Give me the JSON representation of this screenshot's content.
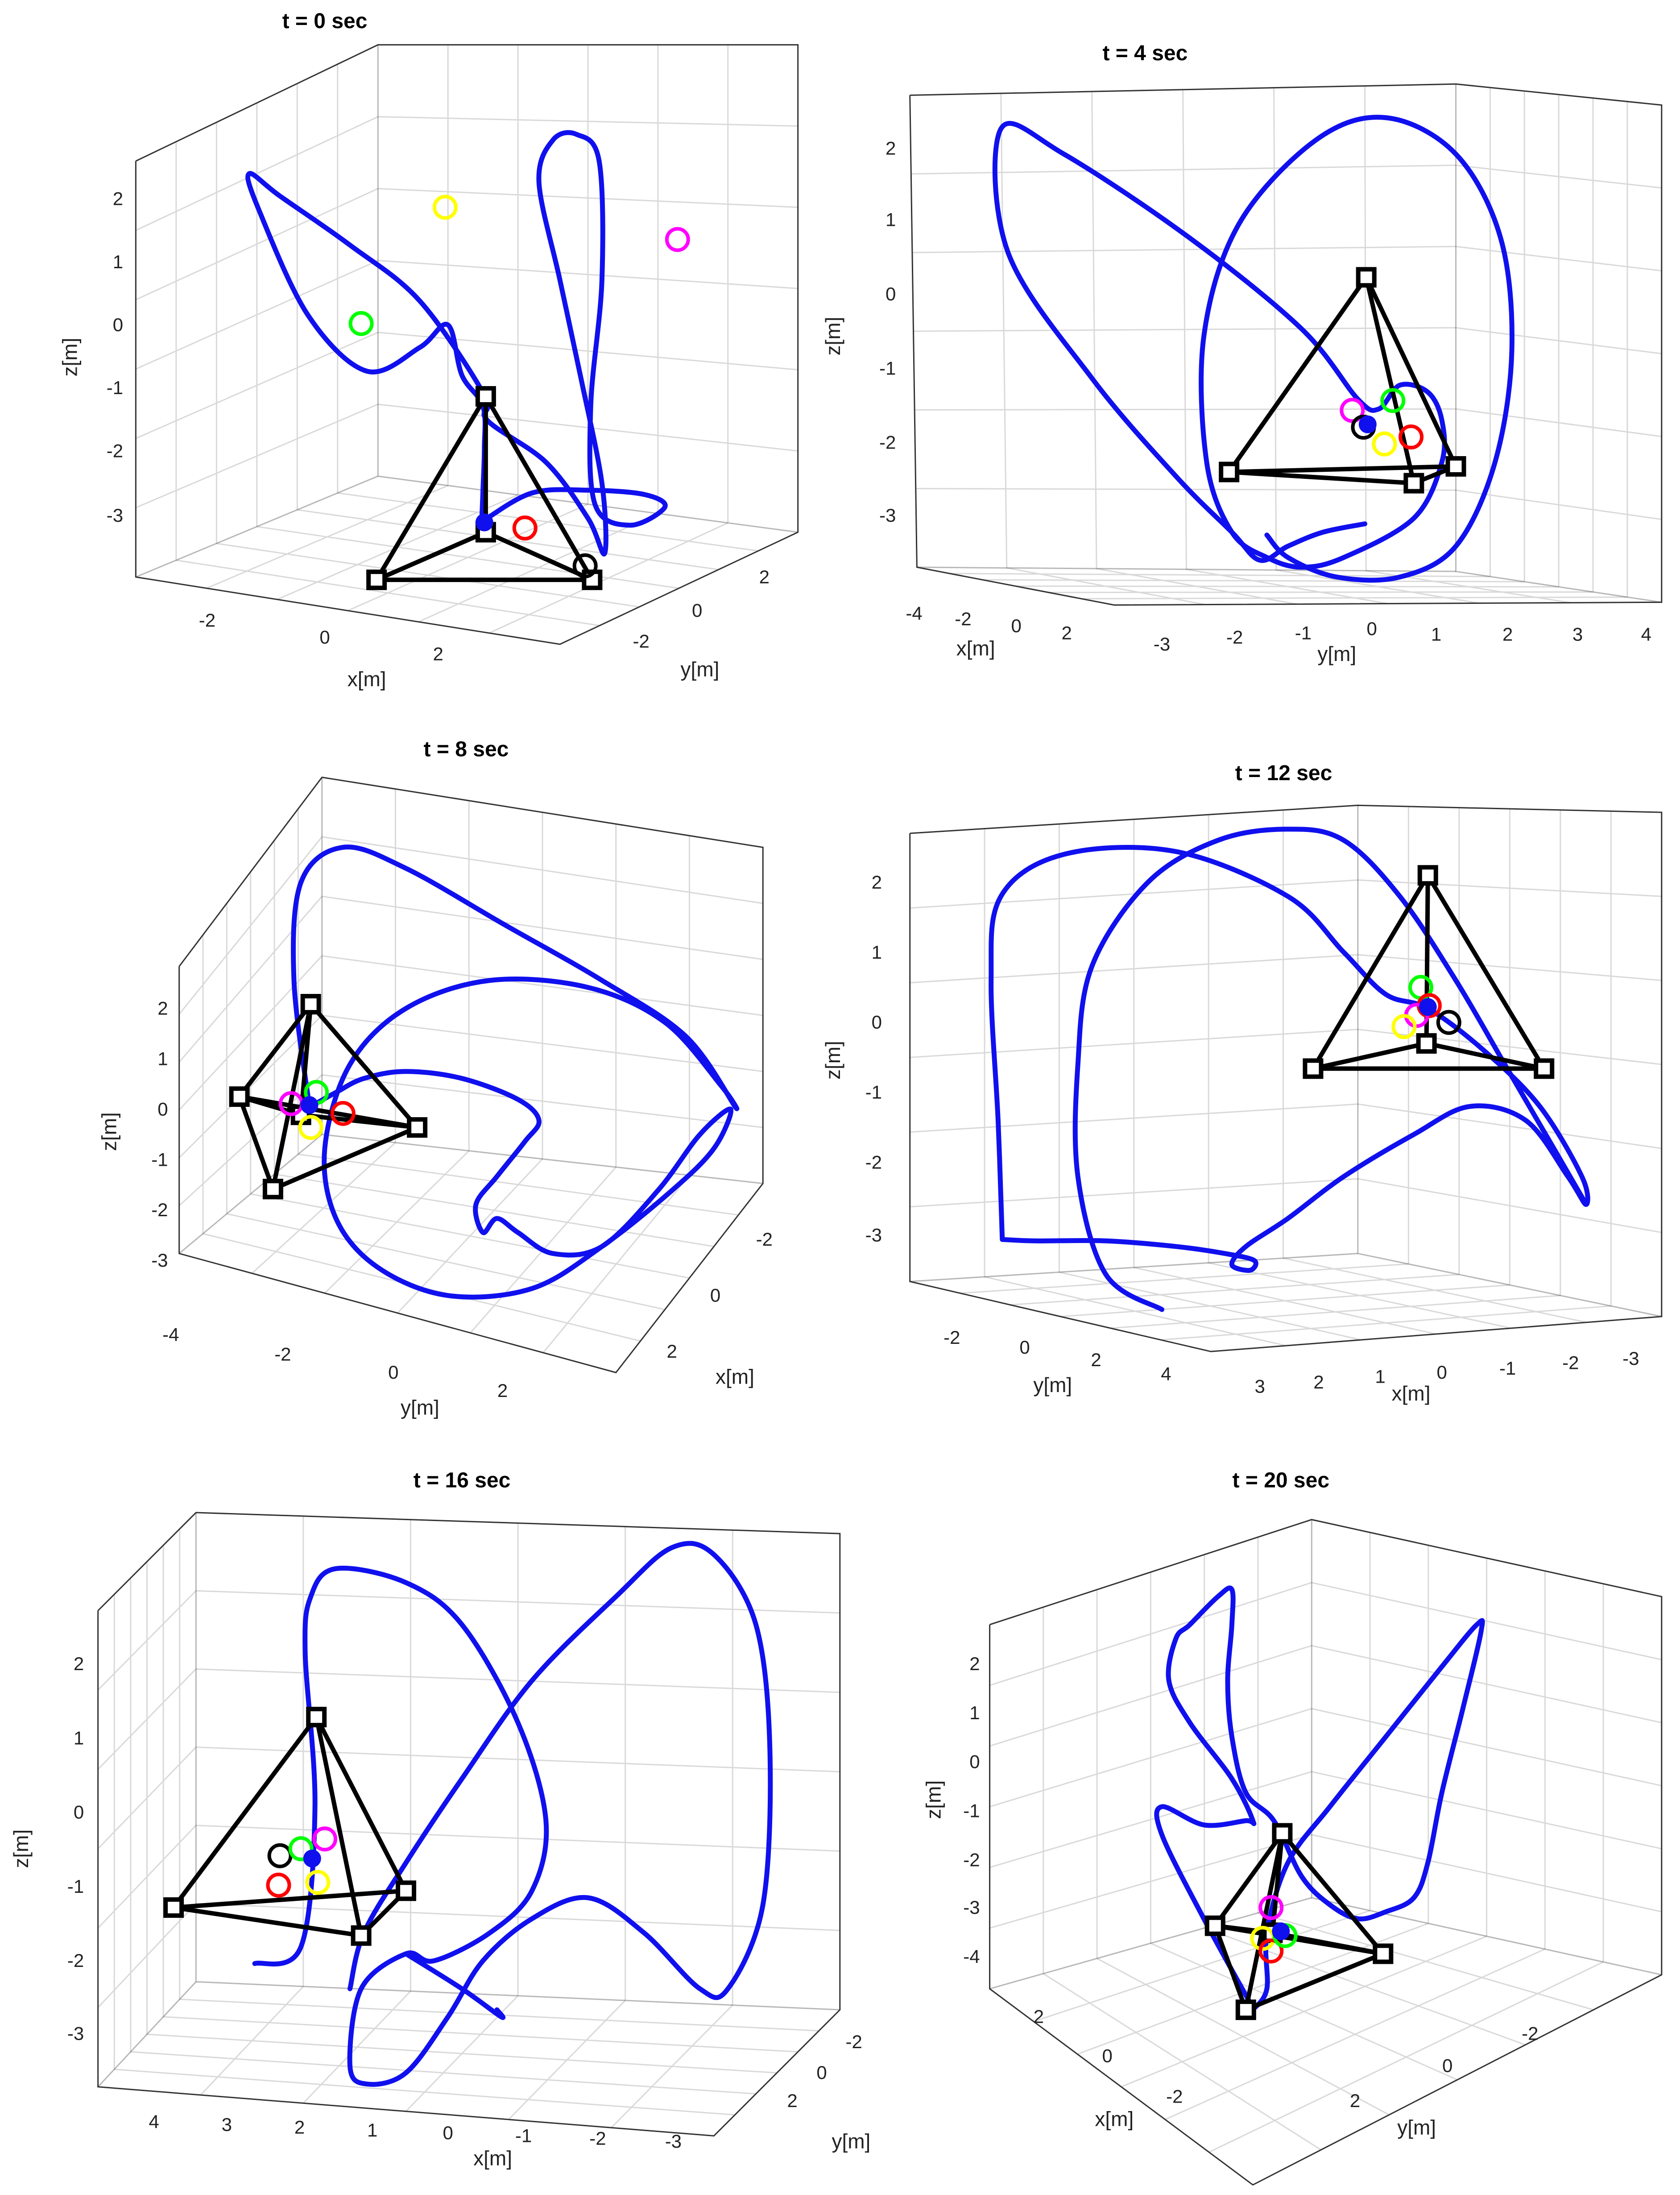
{
  "chart_data": [
    {
      "type": "line3d",
      "title": "t = 0 sec",
      "xlabel": "x[m]",
      "ylabel": "y[m]",
      "zlabel": "z[m]",
      "xticks": [
        "-2",
        "0",
        "2"
      ],
      "yticks": [
        "2",
        "0",
        "-2"
      ],
      "zticks": [
        "2",
        "1",
        "0",
        "-1",
        "-2",
        "-3"
      ],
      "grid": true,
      "series": [
        {
          "name": "",
          "kind": "trajectory",
          "color": "#0000ff"
        },
        {
          "name": "",
          "kind": "tetrahedron-frame",
          "color": "#000000"
        }
      ],
      "markers": [
        {
          "color": "#ffff00"
        },
        {
          "color": "#ff00ff"
        },
        {
          "color": "#00ff00"
        },
        {
          "color": "#ff0000"
        },
        {
          "color": "#000000"
        },
        {
          "color": "#0000ff"
        }
      ]
    },
    {
      "type": "line3d",
      "title": "t = 4 sec",
      "xlabel": "x[m]",
      "ylabel": "y[m]",
      "zlabel": "z[m]",
      "xticks": [
        "-4",
        "-2",
        "0",
        "2"
      ],
      "yticks": [
        "-3",
        "-2",
        "-1",
        "0",
        "1",
        "2",
        "3",
        "4"
      ],
      "zticks": [
        "2",
        "1",
        "0",
        "-1",
        "-2",
        "-3"
      ],
      "grid": true,
      "series": [
        {
          "name": "",
          "kind": "trajectory",
          "color": "#0000ff"
        },
        {
          "name": "",
          "kind": "tetrahedron-frame",
          "color": "#000000"
        }
      ],
      "markers": [
        {
          "color": "#ff00ff"
        },
        {
          "color": "#00ff00"
        },
        {
          "color": "#ff0000"
        },
        {
          "color": "#ffff00"
        },
        {
          "color": "#000000"
        },
        {
          "color": "#0000ff"
        }
      ]
    },
    {
      "type": "line3d",
      "title": "t = 8 sec",
      "xlabel": "x[m]",
      "ylabel": "y[m]",
      "zlabel": "z[m]",
      "xticks": [
        "-2",
        "0",
        "2"
      ],
      "yticks": [
        "-4",
        "-2",
        "0",
        "2"
      ],
      "zticks": [
        "2",
        "1",
        "0",
        "-1",
        "-2",
        "-3"
      ],
      "grid": true,
      "series": [
        {
          "name": "",
          "kind": "trajectory",
          "color": "#0000ff"
        },
        {
          "name": "",
          "kind": "tetrahedron-frame",
          "color": "#000000"
        }
      ],
      "markers": [
        {
          "color": "#00ff00"
        },
        {
          "color": "#ff00ff"
        },
        {
          "color": "#ff0000"
        },
        {
          "color": "#ffff00"
        },
        {
          "color": "#0000ff"
        }
      ]
    },
    {
      "type": "line3d",
      "title": "t = 12 sec",
      "xlabel": "x[m]",
      "ylabel": "y[m]",
      "zlabel": "z[m]",
      "xticks": [
        "3",
        "2",
        "1",
        "0",
        "-1",
        "-2",
        "-3"
      ],
      "yticks": [
        "-2",
        "0",
        "2",
        "4"
      ],
      "zticks": [
        "2",
        "1",
        "0",
        "-1",
        "-2",
        "-3"
      ],
      "grid": true,
      "series": [
        {
          "name": "",
          "kind": "trajectory",
          "color": "#0000ff"
        },
        {
          "name": "",
          "kind": "tetrahedron-frame",
          "color": "#000000"
        }
      ],
      "markers": [
        {
          "color": "#00ff00"
        },
        {
          "color": "#ff0000"
        },
        {
          "color": "#ff00ff"
        },
        {
          "color": "#ffff00"
        },
        {
          "color": "#000000"
        },
        {
          "color": "#0000ff"
        }
      ]
    },
    {
      "type": "line3d",
      "title": "t = 16 sec",
      "xlabel": "x[m]",
      "ylabel": "y[m]",
      "zlabel": "z[m]",
      "xticks": [
        "4",
        "3",
        "2",
        "1",
        "0",
        "-1",
        "-2",
        "-3"
      ],
      "yticks": [
        "-2",
        "0",
        "2"
      ],
      "zticks": [
        "2",
        "1",
        "0",
        "-1",
        "-2",
        "-3"
      ],
      "grid": true,
      "series": [
        {
          "name": "",
          "kind": "trajectory",
          "color": "#0000ff"
        },
        {
          "name": "",
          "kind": "tetrahedron-frame",
          "color": "#000000"
        }
      ],
      "markers": [
        {
          "color": "#000000"
        },
        {
          "color": "#00ff00"
        },
        {
          "color": "#ff00ff"
        },
        {
          "color": "#ff0000"
        },
        {
          "color": "#ffff00"
        },
        {
          "color": "#0000ff"
        }
      ]
    },
    {
      "type": "line3d",
      "title": "t = 20 sec",
      "xlabel": "x[m]",
      "ylabel": "y[m]",
      "zlabel": "z[m]",
      "xticks": [
        "2",
        "0",
        "-2"
      ],
      "yticks": [
        "-2",
        "0",
        "2"
      ],
      "zticks": [
        "2",
        "1",
        "0",
        "-1",
        "-2",
        "-3",
        "-4"
      ],
      "grid": true,
      "series": [
        {
          "name": "",
          "kind": "trajectory",
          "color": "#0000ff"
        },
        {
          "name": "",
          "kind": "tetrahedron-frame",
          "color": "#000000"
        }
      ],
      "markers": [
        {
          "color": "#ff00ff"
        },
        {
          "color": "#ffff00"
        },
        {
          "color": "#ff0000"
        },
        {
          "color": "#00ff00"
        },
        {
          "color": "#0000ff"
        }
      ]
    }
  ]
}
